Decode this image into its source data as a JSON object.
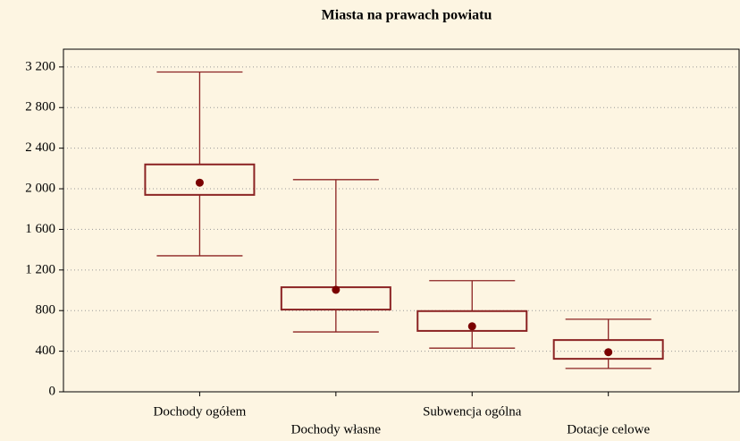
{
  "chart_data": {
    "type": "box",
    "title": "Miasta na prawach powiatu",
    "categories": [
      "Dochody ogółem",
      "Dochody własne",
      "Subwencja ogólna",
      "Dotacje celowe"
    ],
    "whisker_high": [
      3150,
      2090,
      1095,
      715
    ],
    "box_high": [
      2240,
      1030,
      795,
      510
    ],
    "mean": [
      2060,
      1005,
      645,
      390
    ],
    "box_low": [
      1940,
      810,
      600,
      325
    ],
    "whisker_low": [
      1340,
      590,
      430,
      230
    ],
    "color": "#8b2323",
    "mean_color": "#7a0000",
    "ylim": [
      0,
      3375
    ],
    "yticks": [
      0,
      400,
      800,
      {
        "value": 1200,
        "label": "1 200"
      },
      {
        "value": 1600,
        "label": "1 600"
      },
      {
        "value": 2000,
        "label": "2 000"
      },
      {
        "value": 2400,
        "label": "2 400"
      },
      {
        "value": 2800,
        "label": "2 800"
      },
      {
        "value": 3200,
        "label": "3 200"
      }
    ],
    "grid": true
  }
}
